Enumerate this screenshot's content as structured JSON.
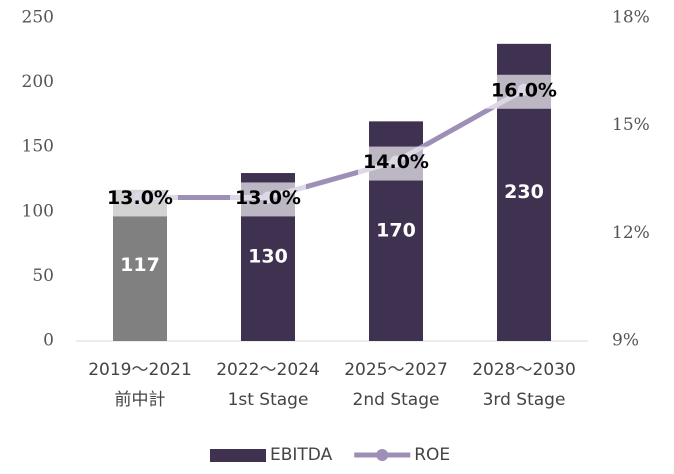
{
  "chart_data": {
    "type": "bar",
    "categories": [
      [
        "2019～2021",
        "前中計"
      ],
      [
        "2022～2024",
        "1st Stage"
      ],
      [
        "2025～2027",
        "2nd Stage"
      ],
      [
        "2028～2030",
        "3rd Stage"
      ]
    ],
    "series": [
      {
        "name": "EBITDA",
        "color": "#3f3150",
        "colors": [
          "#808080",
          "#3f3150",
          "#3f3150",
          "#3f3150"
        ],
        "values": [
          117,
          130,
          170,
          230
        ]
      },
      {
        "name": "ROE",
        "type": "line",
        "axis": "y2",
        "color": "#9d8fb5",
        "values": [
          13,
          13,
          14,
          16
        ],
        "value_labels": [
          "13.0%",
          "13.0%",
          "14.0%",
          "16.0%"
        ]
      }
    ],
    "ylim": [
      0,
      250
    ],
    "yticks": [
      0,
      50,
      100,
      150,
      200,
      250
    ],
    "y2lim": [
      9,
      18
    ],
    "y2ticks": [
      {
        "value": 9,
        "label": "9%"
      },
      {
        "value": 12,
        "label": "12%"
      },
      {
        "value": 15,
        "label": "15%"
      },
      {
        "value": 18,
        "label": "18%"
      }
    ],
    "legend": "bottom"
  }
}
